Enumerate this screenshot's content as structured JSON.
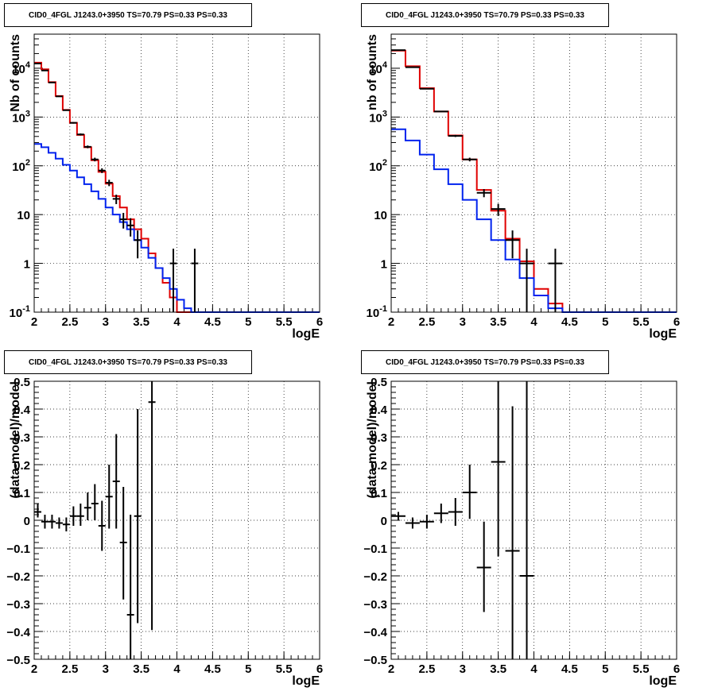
{
  "colors": {
    "data": "#000000",
    "total_model": "#e00000",
    "component_model": "#0022ee",
    "grid": "#000000",
    "frame": "#000000"
  },
  "chart_data": [
    {
      "type": "line",
      "title": "CID0_4FGL J1243.0+3950 TS=70.79 PS=0.33 PS=0.33",
      "xlabel": "logE",
      "ylabel": "Nb of counts",
      "xlim": [
        2,
        6
      ],
      "ylim": [
        0.1,
        50000
      ],
      "yscale": "log",
      "xticks": [
        "2",
        "2.5",
        "3",
        "3.5",
        "4",
        "4.5",
        "5",
        "5.5",
        "6"
      ],
      "yticks": [
        {
          "v": 0.1,
          "base": "10",
          "exp": "-1"
        },
        {
          "v": 1,
          "label": "1"
        },
        {
          "v": 10,
          "label": "10"
        },
        {
          "v": 100,
          "base": "10",
          "exp": "2"
        },
        {
          "v": 1000,
          "base": "10",
          "exp": "3"
        },
        {
          "v": 10000,
          "base": "10",
          "exp": "4"
        }
      ],
      "grid": true,
      "bin_edges": [
        2.0,
        2.1,
        2.2,
        2.3,
        2.4,
        2.5,
        2.6,
        2.7,
        2.8,
        2.9,
        3.0,
        3.1,
        3.2,
        3.3,
        3.4,
        3.5,
        3.6,
        3.7,
        3.8,
        3.9,
        4.0,
        4.1,
        4.2,
        4.3,
        4.4,
        4.5,
        4.6,
        4.7,
        4.8,
        4.9,
        5.0,
        5.1,
        5.2,
        5.3,
        5.4,
        5.5,
        5.6,
        5.7,
        5.8,
        5.9,
        6.0
      ],
      "series": [
        {
          "values": [
            13000,
            9500,
            5200,
            2700,
            1400,
            760,
            430,
            240,
            130,
            75,
            43,
            24,
            14,
            8,
            5,
            3.2,
            1.6,
            0.8,
            0.4,
            0.2,
            0.1,
            0.1,
            0.1,
            0.1,
            0.1,
            0.1,
            0.1,
            0.1,
            0.1,
            0.1,
            0.1,
            0.1,
            0.1,
            0.1,
            0.1,
            0.1,
            0.1,
            0.1,
            0.1,
            0.1
          ],
          "style": "total"
        },
        {
          "values": [
            280,
            240,
            185,
            140,
            105,
            80,
            58,
            42,
            30,
            21,
            14,
            10,
            7,
            5,
            3,
            2.1,
            1.3,
            0.8,
            0.5,
            0.3,
            0.18,
            0.12,
            0.1,
            0.1,
            0.1,
            0.1,
            0.1,
            0.1,
            0.1,
            0.1,
            0.1,
            0.1,
            0.1,
            0.1,
            0.1,
            0.1,
            0.1,
            0.1,
            0.1,
            0.1
          ],
          "style": "component"
        }
      ],
      "data_points": [
        {
          "x": 2.05,
          "y": 12500
        },
        {
          "x": 2.15,
          "y": 9000
        },
        {
          "x": 2.25,
          "y": 5100
        },
        {
          "x": 2.35,
          "y": 2650
        },
        {
          "x": 2.45,
          "y": 1380
        },
        {
          "x": 2.55,
          "y": 760
        },
        {
          "x": 2.65,
          "y": 440
        },
        {
          "x": 2.75,
          "y": 245
        },
        {
          "x": 2.85,
          "y": 135
        },
        {
          "x": 2.95,
          "y": 80
        },
        {
          "x": 3.05,
          "y": 45
        },
        {
          "x": 3.15,
          "y": 21
        },
        {
          "x": 3.25,
          "y": 8
        },
        {
          "x": 3.35,
          "y": 6
        },
        {
          "x": 3.45,
          "y": 3
        },
        {
          "x": 3.95,
          "y": 1
        },
        {
          "x": 4.25,
          "y": 1
        }
      ]
    },
    {
      "type": "line",
      "title": "CID0_4FGL J1243.0+3950 TS=70.79 PS=0.33 PS=0.33",
      "xlabel": "logE",
      "ylabel": "nb of counts",
      "xlim": [
        2,
        6
      ],
      "ylim": [
        0.1,
        50000
      ],
      "yscale": "log",
      "xticks": [
        "2",
        "2.5",
        "3",
        "3.5",
        "4",
        "4.5",
        "5",
        "5.5",
        "6"
      ],
      "yticks": [
        {
          "v": 0.1,
          "base": "10",
          "exp": "-1"
        },
        {
          "v": 1,
          "label": "1"
        },
        {
          "v": 10,
          "label": "10"
        },
        {
          "v": 100,
          "base": "10",
          "exp": "2"
        },
        {
          "v": 1000,
          "base": "10",
          "exp": "3"
        },
        {
          "v": 10000,
          "base": "10",
          "exp": "4"
        }
      ],
      "grid": true,
      "bin_edges": [
        2.0,
        2.2,
        2.4,
        2.6,
        2.8,
        3.0,
        3.2,
        3.4,
        3.6,
        3.8,
        4.0,
        4.2,
        4.4,
        4.6,
        4.8,
        5.0,
        5.2,
        5.4,
        5.6,
        5.8,
        6.0
      ],
      "series": [
        {
          "values": [
            23000,
            11000,
            3900,
            1300,
            420,
            135,
            32,
            12,
            3.2,
            1.1,
            0.3,
            0.15,
            0.1,
            0.1,
            0.1,
            0.1,
            0.1,
            0.1,
            0.1,
            0.1
          ],
          "style": "total"
        },
        {
          "values": [
            560,
            330,
            170,
            85,
            42,
            20,
            8,
            3,
            1.2,
            0.5,
            0.22,
            0.12,
            0.1,
            0.1,
            0.1,
            0.1,
            0.1,
            0.1,
            0.1,
            0.1
          ],
          "style": "component"
        }
      ],
      "data_points": [
        {
          "x": 2.1,
          "y": 23500
        },
        {
          "x": 2.3,
          "y": 10500
        },
        {
          "x": 2.5,
          "y": 3800
        },
        {
          "x": 2.7,
          "y": 1300
        },
        {
          "x": 2.9,
          "y": 410
        },
        {
          "x": 3.1,
          "y": 135
        },
        {
          "x": 3.3,
          "y": 28
        },
        {
          "x": 3.5,
          "y": 13
        },
        {
          "x": 3.7,
          "y": 3
        },
        {
          "x": 3.9,
          "y": 1
        },
        {
          "x": 4.3,
          "y": 1
        }
      ]
    },
    {
      "type": "scatter",
      "title": "CID0_4FGL J1243.0+3950 TS=70.79 PS=0.33 PS=0.33",
      "xlabel": "logE",
      "ylabel": "(data-model)/model",
      "xlim": [
        2,
        6
      ],
      "ylim": [
        -0.5,
        0.5
      ],
      "yscale": "linear",
      "xticks": [
        "2",
        "2.5",
        "3",
        "3.5",
        "4",
        "4.5",
        "5",
        "5.5",
        "6"
      ],
      "yticks": [
        {
          "v": -0.5,
          "label": "−0.5"
        },
        {
          "v": -0.4,
          "label": "−0.4"
        },
        {
          "v": -0.3,
          "label": "−0.3"
        },
        {
          "v": -0.2,
          "label": "−0.2"
        },
        {
          "v": -0.1,
          "label": "−0.1"
        },
        {
          "v": 0,
          "label": "0"
        },
        {
          "v": 0.1,
          "label": "0.1"
        },
        {
          "v": 0.2,
          "label": "0.2"
        },
        {
          "v": 0.3,
          "label": "0.3"
        },
        {
          "v": 0.4,
          "label": "0.4"
        },
        {
          "v": 0.5,
          "label": "0.5"
        }
      ],
      "grid": true,
      "points": [
        {
          "x": 2.05,
          "xerr": 0.05,
          "y": 0.03,
          "ylo": 0.01,
          "yhi": 0.06
        },
        {
          "x": 2.15,
          "xerr": 0.05,
          "y": -0.005,
          "ylo": -0.03,
          "yhi": 0.02
        },
        {
          "x": 2.25,
          "xerr": 0.05,
          "y": -0.005,
          "ylo": -0.03,
          "yhi": 0.02
        },
        {
          "x": 2.35,
          "xerr": 0.05,
          "y": -0.01,
          "ylo": -0.03,
          "yhi": 0.01
        },
        {
          "x": 2.45,
          "xerr": 0.05,
          "y": -0.015,
          "ylo": -0.04,
          "yhi": 0.01
        },
        {
          "x": 2.55,
          "xerr": 0.05,
          "y": 0.015,
          "ylo": -0.02,
          "yhi": 0.05
        },
        {
          "x": 2.65,
          "xerr": 0.05,
          "y": 0.015,
          "ylo": -0.02,
          "yhi": 0.06
        },
        {
          "x": 2.75,
          "xerr": 0.05,
          "y": 0.045,
          "ylo": 0.0,
          "yhi": 0.1
        },
        {
          "x": 2.85,
          "xerr": 0.05,
          "y": 0.06,
          "ylo": 0.0,
          "yhi": 0.13
        },
        {
          "x": 2.95,
          "xerr": 0.05,
          "y": -0.02,
          "ylo": -0.11,
          "yhi": 0.07
        },
        {
          "x": 3.05,
          "xerr": 0.05,
          "y": 0.085,
          "ylo": -0.03,
          "yhi": 0.2
        },
        {
          "x": 3.15,
          "xerr": 0.05,
          "y": 0.14,
          "ylo": -0.03,
          "yhi": 0.31
        },
        {
          "x": 3.25,
          "xerr": 0.05,
          "y": -0.08,
          "ylo": -0.285,
          "yhi": 0.12
        },
        {
          "x": 3.35,
          "xerr": 0.05,
          "y": -0.34,
          "ylo": -0.5,
          "yhi": 0.02
        },
        {
          "x": 3.45,
          "xerr": 0.05,
          "y": 0.015,
          "ylo": -0.37,
          "yhi": 0.4
        },
        {
          "x": 3.65,
          "xerr": 0.05,
          "y": 0.425,
          "ylo": -0.395,
          "yhi": 0.5
        }
      ]
    },
    {
      "type": "scatter",
      "title": "CID0_4FGL J1243.0+3950 TS=70.79 PS=0.33 PS=0.33",
      "xlabel": "logE",
      "ylabel": "(data-model)/model",
      "xlim": [
        2,
        6
      ],
      "ylim": [
        -0.5,
        0.5
      ],
      "yscale": "linear",
      "xticks": [
        "2",
        "2.5",
        "3",
        "3.5",
        "4",
        "4.5",
        "5",
        "5.5",
        "6"
      ],
      "yticks": [
        {
          "v": -0.5,
          "label": "−0.5"
        },
        {
          "v": -0.4,
          "label": "−0.4"
        },
        {
          "v": -0.3,
          "label": "−0.3"
        },
        {
          "v": -0.2,
          "label": "−0.2"
        },
        {
          "v": -0.1,
          "label": "−0.1"
        },
        {
          "v": 0,
          "label": "0"
        },
        {
          "v": 0.1,
          "label": "0.1"
        },
        {
          "v": 0.2,
          "label": "0.2"
        },
        {
          "v": 0.3,
          "label": "0.3"
        },
        {
          "v": 0.4,
          "label": "0.4"
        },
        {
          "v": 0.5,
          "label": "0.5"
        }
      ],
      "grid": true,
      "points": [
        {
          "x": 2.1,
          "xerr": 0.1,
          "y": 0.015,
          "ylo": 0.0,
          "yhi": 0.03
        },
        {
          "x": 2.3,
          "xerr": 0.1,
          "y": -0.01,
          "ylo": -0.03,
          "yhi": 0.01
        },
        {
          "x": 2.5,
          "xerr": 0.1,
          "y": -0.005,
          "ylo": -0.03,
          "yhi": 0.02
        },
        {
          "x": 2.7,
          "xerr": 0.1,
          "y": 0.025,
          "ylo": -0.01,
          "yhi": 0.06
        },
        {
          "x": 2.9,
          "xerr": 0.1,
          "y": 0.03,
          "ylo": -0.02,
          "yhi": 0.08
        },
        {
          "x": 3.1,
          "xerr": 0.1,
          "y": 0.1,
          "ylo": 0.005,
          "yhi": 0.2
        },
        {
          "x": 3.3,
          "xerr": 0.1,
          "y": -0.17,
          "ylo": -0.33,
          "yhi": -0.005
        },
        {
          "x": 3.5,
          "xerr": 0.1,
          "y": 0.21,
          "ylo": -0.13,
          "yhi": 0.5
        },
        {
          "x": 3.7,
          "xerr": 0.1,
          "y": -0.11,
          "ylo": -0.5,
          "yhi": 0.41
        },
        {
          "x": 3.9,
          "xerr": 0.1,
          "y": -0.2,
          "ylo": -0.5,
          "yhi": 0.5
        }
      ]
    }
  ]
}
